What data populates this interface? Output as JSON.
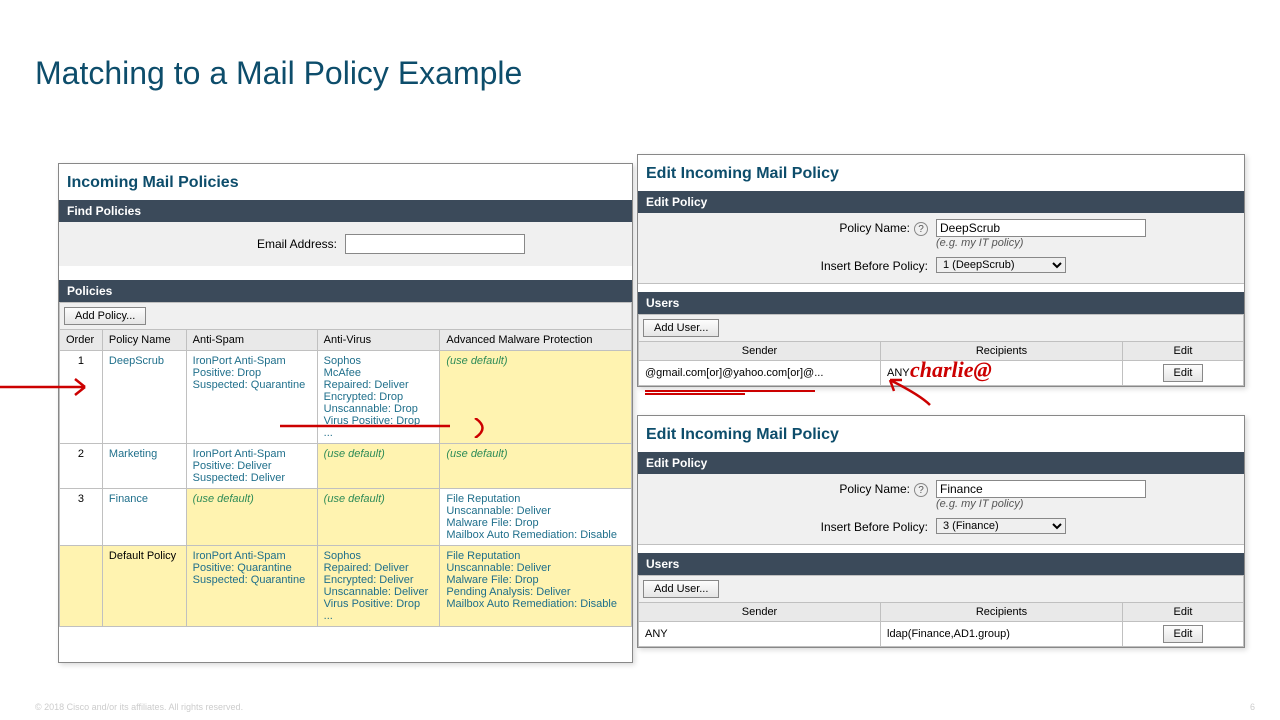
{
  "slide": {
    "title": "Matching to a Mail Policy Example",
    "footer": "© 2018  Cisco and/or its affiliates. All rights reserved.",
    "page": "6"
  },
  "left": {
    "title": "Incoming Mail Policies",
    "find_header": "Find Policies",
    "find_label": "Email Address:",
    "policies_header": "Policies",
    "add_policy": "Add Policy...",
    "cols": {
      "order": "Order",
      "name": "Policy Name",
      "spam": "Anti-Spam",
      "virus": "Anti-Virus",
      "amp": "Advanced Malware Protection"
    },
    "rows": [
      {
        "order": "1",
        "name": "DeepScrub",
        "spam": "IronPort Anti-Spam\nPositive: Drop\nSuspected: Quarantine",
        "virus": "Sophos\nMcAfee\nRepaired: Deliver\nEncrypted: Drop\nUnscannable: Drop\nVirus Positive: Drop\n...",
        "amp": "(use default)",
        "spam_yellow": false,
        "virus_yellow": false,
        "amp_yellow": true
      },
      {
        "order": "2",
        "name": "Marketing",
        "spam": "IronPort Anti-Spam\nPositive: Deliver\nSuspected: Deliver",
        "virus": "(use default)",
        "amp": "(use default)",
        "spam_yellow": false,
        "virus_yellow": true,
        "amp_yellow": true
      },
      {
        "order": "3",
        "name": "Finance",
        "spam": "(use default)",
        "virus": "(use default)",
        "amp": "File Reputation\nUnscannable: Deliver\nMalware File: Drop\nMailbox Auto Remediation: Disable",
        "spam_yellow": true,
        "virus_yellow": true,
        "amp_yellow": false
      },
      {
        "order": "",
        "name": "Default Policy",
        "spam": "IronPort Anti-Spam\nPositive: Quarantine\nSuspected: Quarantine",
        "virus": "Sophos\nRepaired: Deliver\nEncrypted: Deliver\nUnscannable: Deliver\nVirus Positive: Drop\n...",
        "amp": "File Reputation\nUnscannable: Deliver\nMalware File: Drop\nPending Analysis: Deliver\nMailbox Auto Remediation: Disable",
        "spam_yellow": true,
        "virus_yellow": true,
        "amp_yellow": true,
        "default": true
      }
    ]
  },
  "edit1": {
    "title": "Edit Incoming Mail Policy",
    "policy_header": "Edit Policy",
    "name_label": "Policy Name:",
    "name_value": "DeepScrub",
    "name_hint": "(e.g. my IT policy)",
    "insert_label": "Insert Before Policy:",
    "insert_value": "1 (DeepScrub)",
    "users_header": "Users",
    "add_user": "Add User...",
    "user_cols": {
      "sender": "Sender",
      "recipients": "Recipients",
      "edit": "Edit"
    },
    "user_row": {
      "sender": "@gmail.com[or]@yahoo.com[or]@...",
      "recipients": "ANY",
      "edit": "Edit"
    }
  },
  "edit2": {
    "title": "Edit Incoming Mail Policy",
    "policy_header": "Edit Policy",
    "name_label": "Policy Name:",
    "name_value": "Finance",
    "name_hint": "(e.g. my IT policy)",
    "insert_label": "Insert Before Policy:",
    "insert_value": "3 (Finance)",
    "users_header": "Users",
    "add_user": "Add User...",
    "user_cols": {
      "sender": "Sender",
      "recipients": "Recipients",
      "edit": "Edit"
    },
    "user_row": {
      "sender": "ANY",
      "recipients": "ldap(Finance,AD1.group)",
      "edit": "Edit"
    }
  },
  "annotation": {
    "text": "charlie@"
  }
}
